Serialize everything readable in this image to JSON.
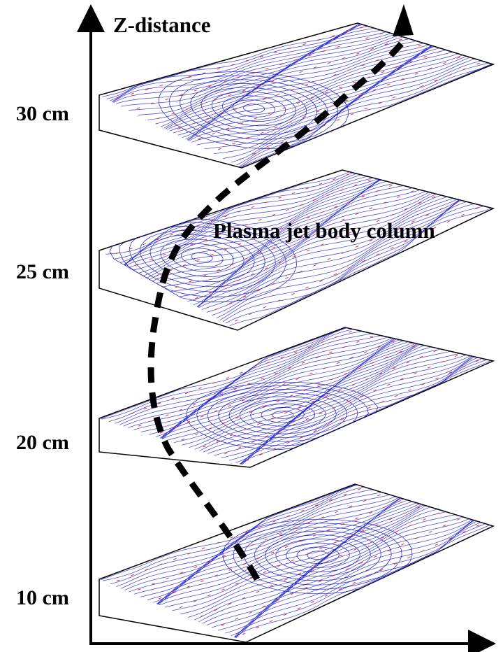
{
  "axis_title": "Z-distance",
  "annotation": "Plasma jet body column",
  "levels": [
    {
      "label": "30 cm"
    },
    {
      "label": "25 cm"
    },
    {
      "label": "20 cm"
    },
    {
      "label": "10 cm"
    }
  ],
  "colors": {
    "streamline": "#1a1acc",
    "vector": "#e03030",
    "axis": "#000000",
    "path": "#000000"
  }
}
